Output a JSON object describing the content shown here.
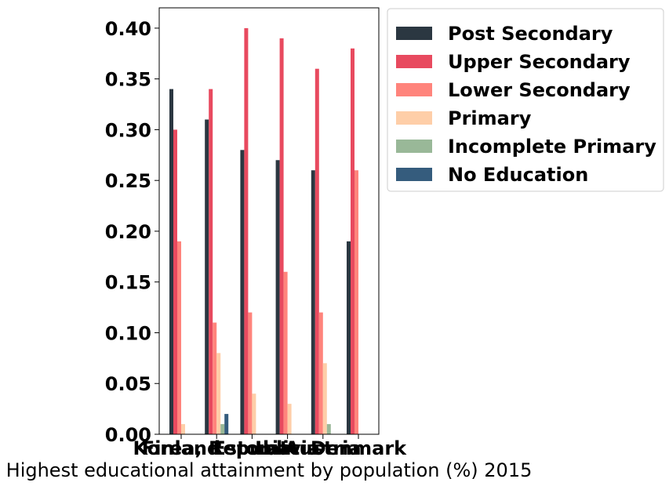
{
  "chart_data": {
    "type": "bar",
    "xlabel": "Highest educational attainment by population (%) 2015",
    "ylabel": "",
    "ylim": [
      0,
      0.42
    ],
    "yticks": [
      "0.00",
      "0.05",
      "0.10",
      "0.15",
      "0.20",
      "0.25",
      "0.30",
      "0.35",
      "0.40"
    ],
    "categories": [
      "Finland",
      "Korea, Republic",
      "Estonia",
      "Latvia",
      "Austria",
      "Denmark"
    ],
    "legend_position": "outside-top-right",
    "grid": false,
    "series": [
      {
        "name": "Post Secondary",
        "color": "#2b3741",
        "values": [
          0.34,
          0.31,
          0.28,
          0.27,
          0.26,
          0.19
        ]
      },
      {
        "name": "Upper Secondary",
        "color": "#e84a5f",
        "values": [
          0.3,
          0.34,
          0.4,
          0.39,
          0.36,
          0.38
        ]
      },
      {
        "name": "Lower Secondary",
        "color": "#ff847c",
        "values": [
          0.19,
          0.11,
          0.12,
          0.16,
          0.12,
          0.26
        ]
      },
      {
        "name": "Primary",
        "color": "#fecea8",
        "values": [
          0.01,
          0.08,
          0.04,
          0.03,
          0.07,
          0.0
        ]
      },
      {
        "name": "Incomplete Primary",
        "color": "#99b898",
        "values": [
          0.0,
          0.01,
          0.0,
          0.0,
          0.01,
          0.0
        ]
      },
      {
        "name": "No Education",
        "color": "#355c7d",
        "values": [
          0.0,
          0.02,
          0.0,
          0.0,
          0.0,
          0.0
        ]
      }
    ]
  }
}
